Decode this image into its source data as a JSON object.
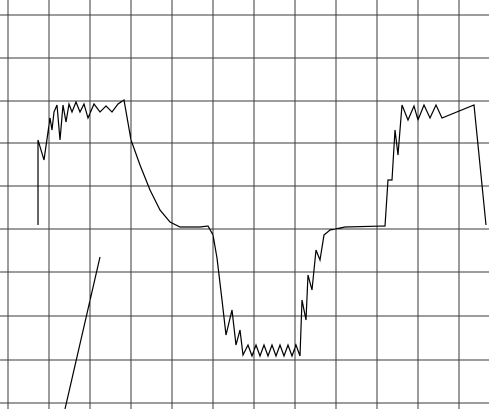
{
  "chart_data": {
    "type": "line",
    "xlim": [
      0,
      489
    ],
    "ylim": [
      0,
      409
    ],
    "xticks": [
      8,
      49,
      90,
      131,
      172,
      213,
      254,
      295,
      336,
      377,
      418,
      459
    ],
    "yticks": [
      6,
      49,
      93,
      137,
      180,
      223,
      266,
      308,
      351,
      394
    ],
    "grid": true,
    "grid_color": "#3a3a3a",
    "series": [
      {
        "color": "#000000",
        "x": [
          38,
          38,
          44,
          50,
          52,
          54,
          57,
          60,
          63,
          66,
          69,
          72,
          76,
          80,
          84,
          88,
          94,
          100,
          106,
          112,
          118,
          124,
          131,
          140,
          150,
          160,
          170,
          180,
          200,
          208,
          213,
          217,
          222,
          226,
          232,
          236,
          240,
          243,
          248,
          252,
          256,
          260,
          264,
          268,
          272,
          276,
          280,
          284,
          288,
          292,
          296,
          300,
          302,
          306,
          308,
          312,
          316,
          320,
          324,
          330,
          345,
          385,
          388,
          392,
          395,
          398,
          402,
          408,
          414,
          418,
          424,
          430,
          436,
          442,
          474,
          486
        ],
        "values": [
          184,
          269,
          249,
          291,
          279,
          297,
          304,
          269,
          304,
          287,
          305,
          297,
          307,
          297,
          305,
          291,
          305,
          297,
          303,
          297,
          305,
          309,
          269,
          244,
          219,
          199,
          187,
          182,
          182,
          183,
          174,
          151,
          109,
          74,
          99,
          64,
          79,
          54,
          64,
          53,
          64,
          53,
          64,
          53,
          64,
          53,
          64,
          53,
          64,
          53,
          64,
          53,
          109,
          89,
          134,
          119,
          159,
          149,
          174,
          179,
          182,
          183,
          229,
          229,
          279,
          254,
          304,
          289,
          303,
          289,
          304,
          291,
          304,
          291,
          304,
          184
        ]
      },
      {
        "color": "#000000",
        "x": [
          65,
          100
        ],
        "values": [
          0,
          152
        ]
      }
    ]
  }
}
